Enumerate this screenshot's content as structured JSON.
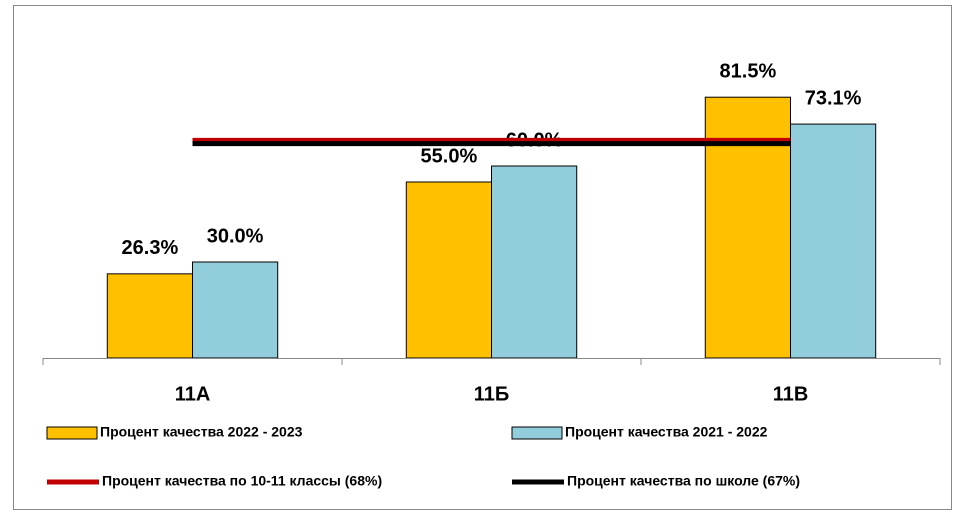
{
  "chart_data": {
    "type": "bar",
    "categories": [
      "11А",
      "11Б",
      "11В"
    ],
    "series": [
      {
        "name": "Процент качества 2022 - 2023",
        "color": "#ffc000",
        "values": [
          26.3,
          55.0,
          81.5
        ],
        "value_labels": [
          "26.3%",
          "55.0%",
          "81.5%"
        ]
      },
      {
        "name": "Процент качества 2021 - 2022",
        "color": "#92cddc",
        "values": [
          30.0,
          60.0,
          73.1
        ],
        "value_labels": [
          "30.0%",
          "60.0%",
          "73.1%"
        ]
      }
    ],
    "lines": [
      {
        "name": "Процент качества по 10-11 классы (68%)",
        "color": "#c00000",
        "value": 68
      },
      {
        "name": "Процент качества по школе (67%)",
        "color": "#000000",
        "value": 67
      }
    ],
    "ylim": [
      0,
      100
    ]
  }
}
